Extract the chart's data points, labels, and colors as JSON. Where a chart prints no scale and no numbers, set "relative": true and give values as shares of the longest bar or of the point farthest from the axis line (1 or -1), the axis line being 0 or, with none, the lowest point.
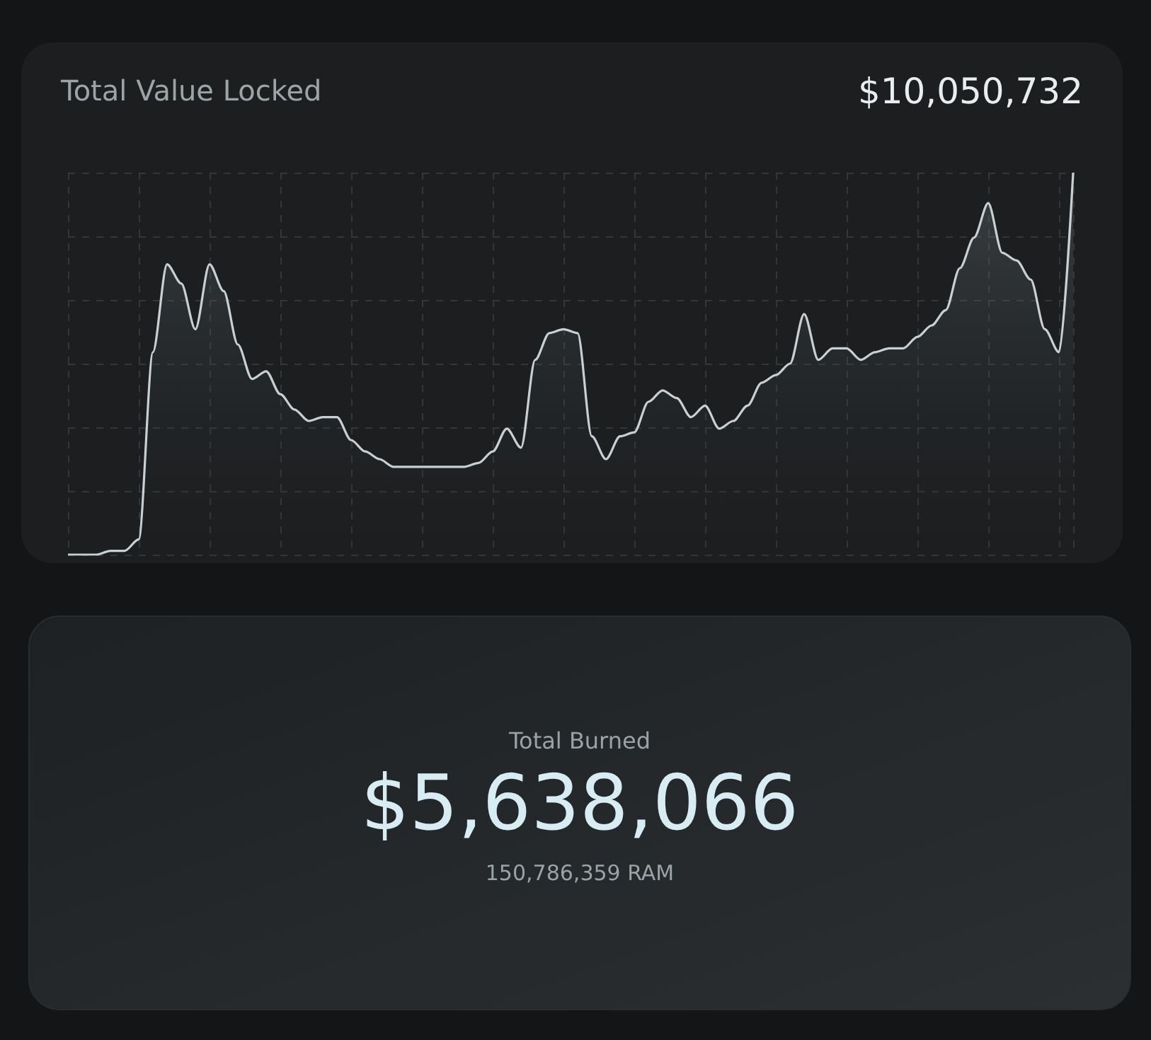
{
  "chart_data": [
    {
      "type": "area",
      "title": "Total Value Locked",
      "annotations": [
        "$10,050,732"
      ],
      "relative": true,
      "grid": true,
      "color": "#c8d0d4",
      "categories": [
        null,
        null,
        null,
        null,
        null,
        null,
        null,
        null,
        null,
        null,
        null,
        null,
        null,
        null,
        null,
        null,
        null,
        null,
        null,
        null,
        null,
        null,
        null,
        null,
        null,
        null,
        null,
        null,
        null,
        null,
        null,
        null,
        null,
        null,
        null,
        null,
        null,
        null,
        null,
        null,
        null,
        null,
        null,
        null,
        null,
        null,
        null,
        null,
        null,
        null,
        null,
        null,
        null,
        null,
        null,
        null,
        null,
        null,
        null,
        null,
        null,
        null,
        null,
        null,
        null,
        null,
        null,
        null,
        null,
        null,
        null,
        null
      ],
      "values": [
        0,
        0,
        0,
        0.01,
        0.01,
        0.04,
        0.53,
        0.76,
        0.71,
        0.59,
        0.76,
        0.69,
        0.55,
        0.46,
        0.48,
        0.42,
        0.38,
        0.35,
        0.36,
        0.36,
        0.3,
        0.27,
        0.25,
        0.23,
        0.23,
        0.23,
        0.23,
        0.23,
        0.23,
        0.24,
        0.27,
        0.33,
        0.28,
        0.51,
        0.58,
        0.59,
        0.58,
        0.31,
        0.25,
        0.31,
        0.32,
        0.4,
        0.43,
        0.41,
        0.36,
        0.39,
        0.33,
        0.35,
        0.39,
        0.45,
        0.47,
        0.5,
        0.63,
        0.51,
        0.54,
        0.54,
        0.51,
        0.53,
        0.54,
        0.54,
        0.57,
        0.6,
        0.64,
        0.75,
        0.83,
        0.92,
        0.79,
        0.77,
        0.72,
        0.59,
        0.53,
        1.0
      ]
    },
    {
      "type": "other",
      "title": "Total Burned",
      "annotations": [
        "$5,638,066",
        "150,786,359 RAM"
      ]
    }
  ]
}
